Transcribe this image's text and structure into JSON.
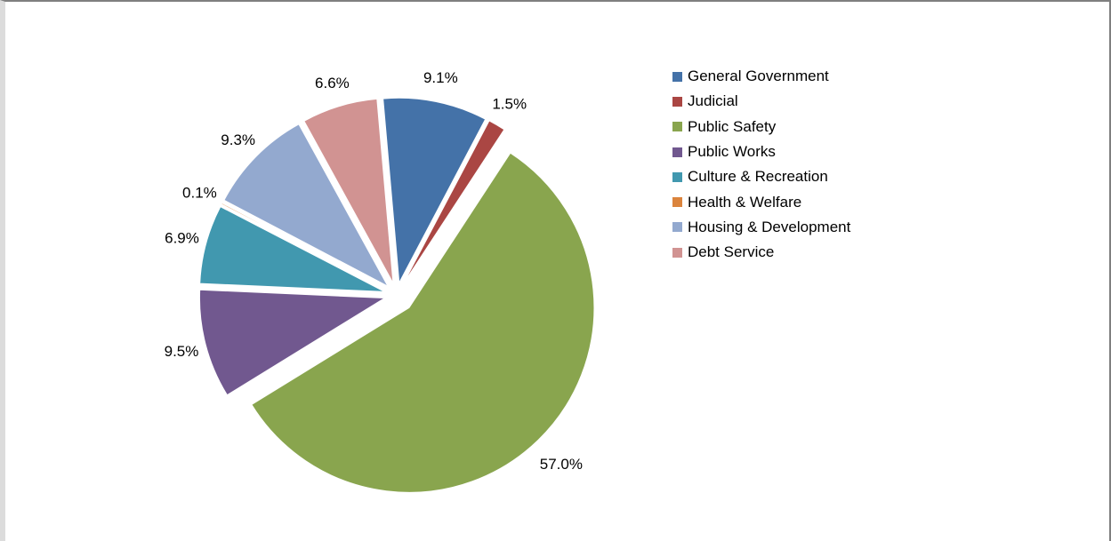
{
  "chart_data": {
    "type": "pie",
    "title": "",
    "slices": [
      {
        "label": "General Government",
        "value": 9.1,
        "display": "9.1%",
        "color": "#4472A8"
      },
      {
        "label": "Judicial",
        "value": 1.5,
        "display": "1.5%",
        "color": "#AA4643"
      },
      {
        "label": "Public Safety",
        "value": 57.0,
        "display": "57.0%",
        "color": "#89A54E"
      },
      {
        "label": "Public Works",
        "value": 9.5,
        "display": "9.5%",
        "color": "#71588F"
      },
      {
        "label": "Culture & Recreation",
        "value": 6.9,
        "display": "6.9%",
        "color": "#4198AF"
      },
      {
        "label": "Health & Welfare",
        "value": 0.1,
        "display": "0.1%",
        "color": "#DB843D"
      },
      {
        "label": "Housing & Development",
        "value": 9.3,
        "display": "9.3%",
        "color": "#93A9CF"
      },
      {
        "label": "Debt Service",
        "value": 6.6,
        "display": "6.6%",
        "color": "#D19392"
      }
    ],
    "legend_position": "right",
    "start_angle_deg": -5,
    "direction": "clockwise",
    "exploded": true
  }
}
